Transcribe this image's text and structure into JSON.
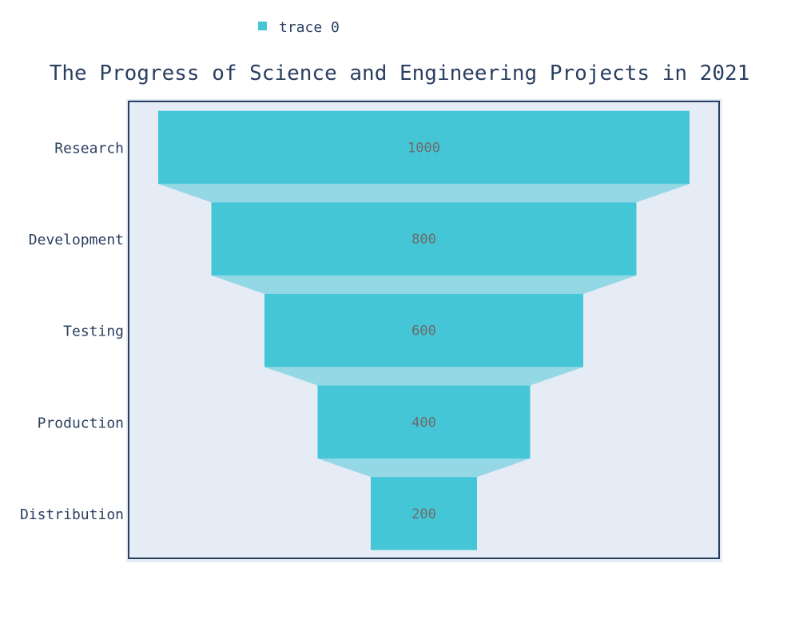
{
  "chart_data": {
    "type": "funnel",
    "title": "The Progress of Science and Engineering Projects in 2021",
    "categories": [
      "Research",
      "Development",
      "Testing",
      "Production",
      "Distribution"
    ],
    "series": [
      {
        "name": "trace 0",
        "values": [
          1000,
          800,
          600,
          400,
          200
        ]
      }
    ],
    "legend": {
      "position": "top-center"
    },
    "colors": {
      "bar": "#45c6d6",
      "connector": "#94d8e6",
      "plot_bg": "#e5ecf6",
      "frame": "#2a3f5f",
      "label_text": "#6b6b6b",
      "axis_text": "#2a3f5f"
    }
  }
}
